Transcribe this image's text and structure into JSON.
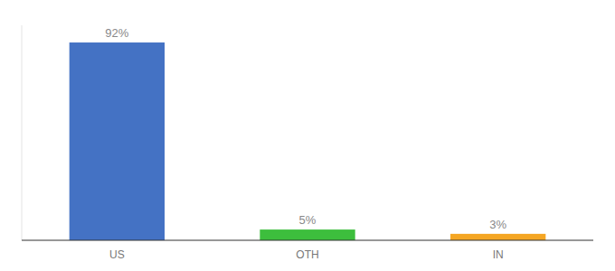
{
  "chart_data": {
    "type": "bar",
    "categories": [
      "US",
      "OTH",
      "IN"
    ],
    "values": [
      92,
      5,
      3
    ],
    "value_labels": [
      "92%",
      "5%",
      "3%"
    ],
    "colors": [
      "#4472C4",
      "#3DBE3D",
      "#F5A623"
    ],
    "ylim": [
      0,
      100
    ],
    "data_labels": true,
    "tick_labels": "x",
    "grid": false
  }
}
